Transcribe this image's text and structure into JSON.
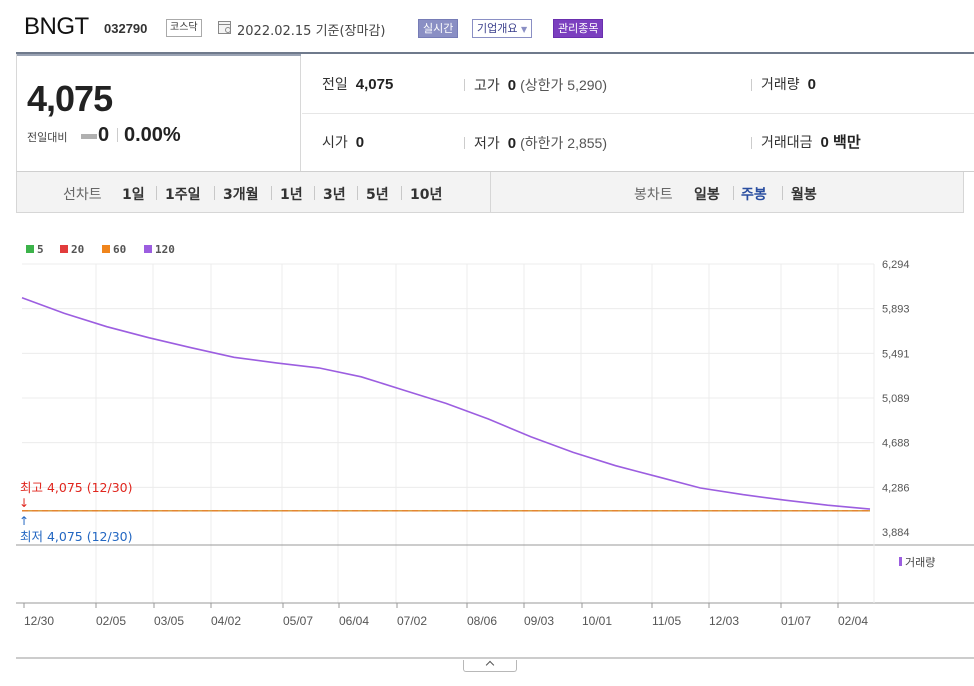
{
  "header": {
    "name": "BNGT",
    "code": "032790",
    "market": "코스닥",
    "base_date": "2022.02.15 기준(장마감)",
    "btn_realtime": "실시간",
    "btn_company": "기업개요",
    "btn_managed": "관리종목"
  },
  "summary": {
    "price": "4,075",
    "change_label": "전일대비",
    "change": "0",
    "change_rate": "0.00%",
    "prev_label": "전일",
    "prev": "4,075",
    "high_label": "고가",
    "high": "0",
    "upper_limit": "(상한가 5,290)",
    "volume_label": "거래량",
    "volume": "0",
    "open_label": "시가",
    "open": "0",
    "low_label": "저가",
    "low": "0",
    "lower_limit": "(하한가 2,855)",
    "value_label": "거래대금",
    "value": "0 백만"
  },
  "period_bar": {
    "line_title": "선차트",
    "line_items": [
      "1일",
      "1주일",
      "3개월",
      "1년",
      "3년",
      "5년",
      "10년"
    ],
    "candle_title": "봉차트",
    "candle_items": [
      "일봉",
      "주봉",
      "월봉"
    ],
    "candle_active": "주봉"
  },
  "colors": {
    "ma5": "#3cb34a",
    "ma20": "#e23c3c",
    "ma60": "#f0851c",
    "ma120": "#9c5ee0",
    "high_text": "#e0261e",
    "low_text": "#2367c2"
  },
  "chart_data": {
    "type": "line",
    "legend": [
      "5",
      "20",
      "60",
      "120"
    ],
    "y_ticks": [
      "6,294",
      "5,893",
      "5,491",
      "5,089",
      "4,688",
      "4,286",
      "3,884"
    ],
    "ylim": [
      3884,
      6294
    ],
    "x_tick_labels": [
      "12/30",
      "02/05",
      "03/05",
      "04/02",
      "05/07",
      "06/04",
      "07/02",
      "08/06",
      "09/03",
      "10/01",
      "11/05",
      "12/03",
      "01/07",
      "02/04"
    ],
    "series": [
      {
        "name": "5",
        "values": [
          4075,
          4075
        ]
      },
      {
        "name": "20",
        "values": [
          4075,
          4075
        ]
      },
      {
        "name": "60",
        "values": [
          4075,
          4075
        ]
      },
      {
        "name": "120",
        "values": [
          5990,
          5850,
          5730,
          5630,
          5540,
          5455,
          5405,
          5360,
          5280,
          5160,
          5040,
          4900,
          4740,
          4600,
          4480,
          4380,
          4280,
          4220,
          4170,
          4125,
          4090
        ]
      }
    ],
    "high_label": "최고 4,075 (12/30)",
    "low_label": "최저 4,075 (12/30)",
    "high_arrow": "↓",
    "low_arrow": "↑",
    "volume_label": "거래량",
    "grid": true
  }
}
